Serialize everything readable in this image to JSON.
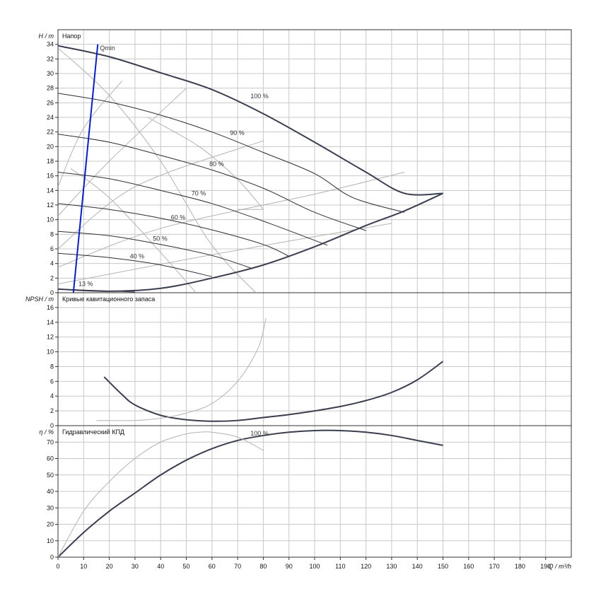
{
  "chart_data": {
    "type": "line",
    "x_axis": {
      "label": "Q / m³/h",
      "range": [
        0,
        200
      ],
      "ticks": [
        0,
        10,
        20,
        30,
        40,
        50,
        60,
        70,
        80,
        90,
        100,
        110,
        120,
        130,
        140,
        150,
        160,
        170,
        180,
        190
      ]
    },
    "grid": true,
    "panels": [
      {
        "id": "head",
        "title": "Напор",
        "ylabel": "H / m",
        "ylim": [
          0,
          36
        ],
        "yticks": [
          0,
          2,
          4,
          6,
          8,
          10,
          12,
          14,
          16,
          18,
          20,
          22,
          24,
          26,
          28,
          30,
          32,
          34
        ],
        "speed_curves": [
          {
            "name": "100 %",
            "points": [
              [
                0,
                33.8
              ],
              [
                20,
                32.3
              ],
              [
                40,
                30.1
              ],
              [
                60,
                27.8
              ],
              [
                80,
                24.5
              ],
              [
                100,
                20.6
              ],
              [
                120,
                16.5
              ],
              [
                135,
                13.6
              ],
              [
                150,
                13.6
              ]
            ],
            "label_at": [
              75,
              26.6
            ]
          },
          {
            "name": "90 %",
            "points": [
              [
                0,
                27.3
              ],
              [
                20,
                26.1
              ],
              [
                40,
                24.3
              ],
              [
                60,
                22.0
              ],
              [
                80,
                19.2
              ],
              [
                100,
                16.3
              ],
              [
                115,
                13.0
              ],
              [
                135,
                11.0
              ]
            ],
            "label_at": [
              67,
              21.6
            ]
          },
          {
            "name": "80 %",
            "points": [
              [
                0,
                21.7
              ],
              [
                20,
                20.6
              ],
              [
                40,
                18.8
              ],
              [
                60,
                16.8
              ],
              [
                80,
                14.3
              ],
              [
                100,
                11.0
              ],
              [
                120,
                8.5
              ]
            ],
            "label_at": [
              59,
              17.3
            ]
          },
          {
            "name": "70 %",
            "points": [
              [
                0,
                16.5
              ],
              [
                20,
                15.6
              ],
              [
                40,
                14.0
              ],
              [
                60,
                12.2
              ],
              [
                80,
                9.8
              ],
              [
                105,
                6.5
              ]
            ],
            "label_at": [
              52,
              13.3
            ]
          },
          {
            "name": "60 %",
            "points": [
              [
                0,
                12.2
              ],
              [
                20,
                11.4
              ],
              [
                40,
                10.2
              ],
              [
                60,
                8.6
              ],
              [
                80,
                6.6
              ],
              [
                90,
                5.0
              ]
            ],
            "label_at": [
              44,
              10.0
            ]
          },
          {
            "name": "50 %",
            "points": [
              [
                0,
                8.4
              ],
              [
                20,
                7.8
              ],
              [
                40,
                6.6
              ],
              [
                60,
                5.1
              ],
              [
                75,
                3.4
              ]
            ],
            "label_at": [
              37,
              7.1
            ]
          },
          {
            "name": "40 %",
            "points": [
              [
                0,
                5.4
              ],
              [
                20,
                4.8
              ],
              [
                40,
                3.8
              ],
              [
                60,
                2.2
              ]
            ],
            "label_at": [
              28,
              4.7
            ]
          },
          {
            "name": "13 %",
            "points": [
              [
                0,
                0.5
              ],
              [
                15,
                0.3
              ],
              [
                30,
                0.1
              ]
            ],
            "label_at": [
              8,
              0.9
            ]
          }
        ],
        "efficiency_envelope": {
          "points": [
            [
              0,
              0.5
            ],
            [
              20,
              0.2
            ],
            [
              40,
              0.6
            ],
            [
              60,
              2.0
            ],
            [
              80,
              3.8
            ],
            [
              100,
              6.3
            ],
            [
              120,
              9.2
            ],
            [
              135,
              11.2
            ],
            [
              150,
              13.6
            ]
          ]
        },
        "qmin_line": {
          "label": "Qmin",
          "points": [
            [
              6,
              0
            ],
            [
              15.5,
              34
            ]
          ],
          "color": "#0b1fbf"
        },
        "iso_efficiency_lines": [
          {
            "points": [
              [
                0,
                33.5
              ],
              [
                20,
                27.0
              ],
              [
                40,
                18.0
              ],
              [
                60,
                6.5
              ],
              [
                80,
                -1
              ]
            ]
          },
          {
            "points": [
              [
                0,
                14.5
              ],
              [
                10,
                22.5
              ],
              [
                25,
                29.0
              ]
            ]
          },
          {
            "points": [
              [
                0,
                10.5
              ],
              [
                20,
                18.0
              ],
              [
                50,
                28.0
              ]
            ]
          },
          {
            "points": [
              [
                0,
                6.0
              ],
              [
                30,
                14.5
              ],
              [
                80,
                20.8
              ]
            ]
          },
          {
            "points": [
              [
                0,
                3.5
              ],
              [
                40,
                8.8
              ],
              [
                100,
                13.5
              ],
              [
                135,
                16.5
              ]
            ]
          },
          {
            "points": [
              [
                0,
                1.2
              ],
              [
                60,
                5.2
              ],
              [
                130,
                9.5
              ]
            ]
          },
          {
            "points": [
              [
                5,
                17.0
              ],
              [
                20,
                13.0
              ],
              [
                40,
                5.5
              ],
              [
                55,
                -0.5
              ]
            ]
          },
          {
            "points": [
              [
                70,
                11.4
              ],
              [
                80,
                11.4
              ]
            ]
          },
          {
            "points": [
              [
                80,
                11.4
              ],
              [
                70,
                15.5
              ],
              [
                55,
                20.0
              ],
              [
                35,
                24.0
              ]
            ]
          }
        ]
      },
      {
        "id": "npsh",
        "title": "Кривые кавитационного запаса",
        "ylabel": "NPSH / m",
        "ylim": [
          0,
          18
        ],
        "yticks": [
          0,
          2,
          4,
          6,
          8,
          10,
          12,
          14,
          16
        ],
        "series": [
          {
            "name": "npsh-main",
            "points": [
              [
                18,
                6.6
              ],
              [
                25,
                4.2
              ],
              [
                30,
                2.8
              ],
              [
                40,
                1.4
              ],
              [
                50,
                0.8
              ],
              [
                60,
                0.6
              ],
              [
                70,
                0.7
              ],
              [
                80,
                1.1
              ],
              [
                90,
                1.5
              ],
              [
                100,
                2.0
              ],
              [
                110,
                2.6
              ],
              [
                120,
                3.4
              ],
              [
                130,
                4.5
              ],
              [
                140,
                6.2
              ],
              [
                150,
                8.7
              ]
            ]
          },
          {
            "name": "npsh-secondary",
            "points": [
              [
                15,
                0.7
              ],
              [
                30,
                0.7
              ],
              [
                40,
                1.0
              ],
              [
                50,
                1.7
              ],
              [
                60,
                3.0
              ],
              [
                70,
                6.0
              ],
              [
                78,
                10.5
              ],
              [
                81,
                14.5
              ]
            ]
          }
        ]
      },
      {
        "id": "efficiency",
        "title": "Гидравлический КПД",
        "ylabel": "η / %",
        "ylim": [
          0,
          80
        ],
        "yticks": [
          0,
          10,
          20,
          30,
          40,
          50,
          60,
          70
        ],
        "series": [
          {
            "name": "100 %",
            "points": [
              [
                0,
                0
              ],
              [
                10,
                15
              ],
              [
                20,
                28
              ],
              [
                30,
                39
              ],
              [
                40,
                50
              ],
              [
                50,
                59
              ],
              [
                60,
                66
              ],
              [
                70,
                71
              ],
              [
                80,
                74
              ],
              [
                90,
                76
              ],
              [
                100,
                77
              ],
              [
                110,
                77
              ],
              [
                120,
                76
              ],
              [
                130,
                74
              ],
              [
                140,
                71
              ],
              [
                150,
                68
              ]
            ],
            "label_at": [
              75,
              74
            ]
          },
          {
            "name": "eff-secondary",
            "points": [
              [
                0,
                0
              ],
              [
                10,
                28
              ],
              [
                20,
                46
              ],
              [
                30,
                60
              ],
              [
                40,
                70
              ],
              [
                50,
                75
              ],
              [
                55,
                76
              ],
              [
                60,
                76
              ],
              [
                70,
                73
              ],
              [
                80,
                65
              ]
            ]
          }
        ]
      }
    ]
  }
}
